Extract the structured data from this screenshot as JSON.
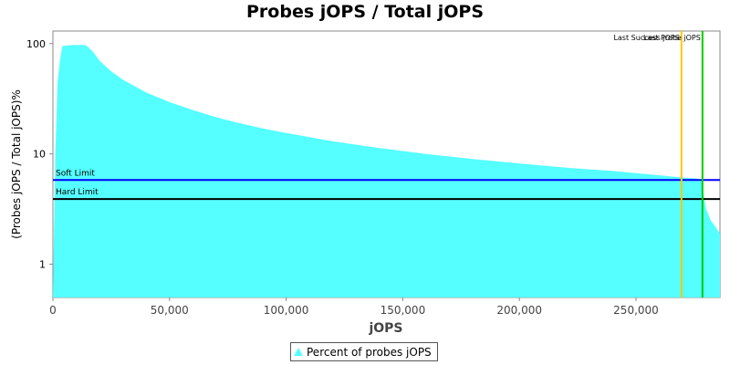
{
  "chart_data": {
    "type": "area",
    "title": "Probes jOPS / Total jOPS",
    "xlabel": "jOPS",
    "ylabel": "(Probes jOPS / Total jOPS)%",
    "xlim": [
      0,
      286000
    ],
    "ylim": [
      0.5,
      130
    ],
    "yscale": "log",
    "x_ticks": [
      0,
      50000,
      100000,
      150000,
      200000,
      250000
    ],
    "x_tick_labels": [
      "0",
      "50,000",
      "100,000",
      "150,000",
      "200,000",
      "250,000"
    ],
    "y_ticks": [
      1,
      10,
      100
    ],
    "y_tick_labels": [
      "1",
      "10",
      "100"
    ],
    "grid": false,
    "legend_position": "bottom",
    "series": [
      {
        "name": "Percent of probes jOPS",
        "color": "#55ffff",
        "x": [
          0,
          1000,
          2000,
          3000,
          4000,
          8000,
          14000,
          17000,
          20000,
          25000,
          30000,
          40000,
          50000,
          60000,
          70000,
          80000,
          90000,
          100000,
          120000,
          140000,
          160000,
          180000,
          200000,
          220000,
          240000,
          260000,
          270000,
          276000,
          278000,
          280000,
          282000,
          284000,
          286000
        ],
        "y": [
          0.5,
          10,
          45,
          70,
          95,
          97,
          97,
          85,
          70,
          56,
          47,
          36,
          29.5,
          25,
          21.5,
          19,
          17,
          15.5,
          13,
          11.3,
          10,
          9,
          8.2,
          7.5,
          7,
          6.4,
          6.1,
          6,
          5.7,
          3.2,
          2.5,
          2.2,
          1.9
        ]
      }
    ],
    "reference_lines": [
      {
        "axis": "y",
        "value": 5.8,
        "label": "Soft Limit",
        "color": "#0000ff"
      },
      {
        "axis": "y",
        "value": 3.9,
        "label": "Hard Limit",
        "color": "#000000"
      },
      {
        "axis": "x",
        "value": 269500,
        "label": "Last Success jOPS",
        "color": "#ffc800"
      },
      {
        "axis": "x",
        "value": 278500,
        "label": "Last Probe jOPS",
        "color": "#00cc00"
      }
    ]
  }
}
